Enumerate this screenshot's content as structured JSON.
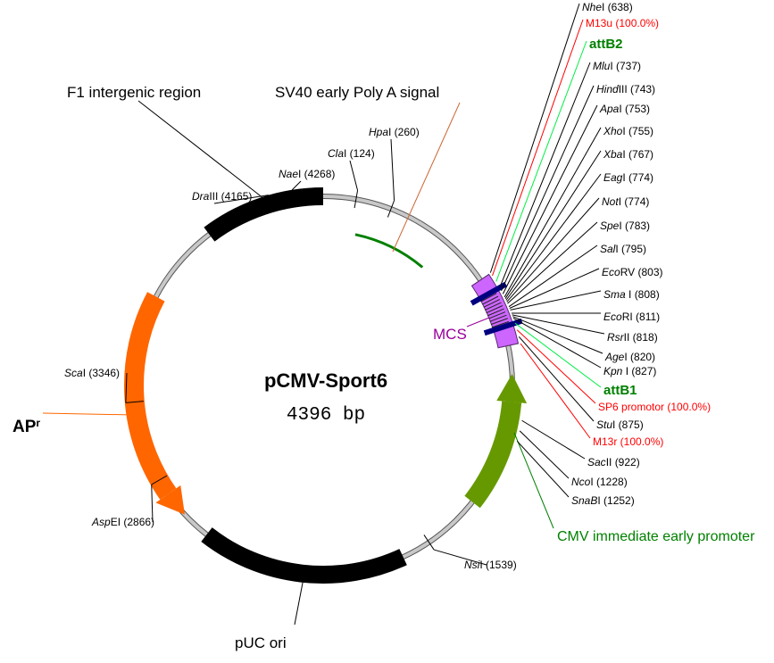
{
  "plasmid": {
    "name": "pCMV-Sport6",
    "size_label": "4396 bp",
    "length_bp": 4396
  },
  "colors": {
    "backbone": "#c8c8c8",
    "f1": "#000000",
    "puc": "#000000",
    "ampr": "#ff6600",
    "cmv": "#669900",
    "mcs": "#cc66ff",
    "polyA": "#008000",
    "primer": "#ff0000",
    "att": "#00cc33",
    "mcs_label": "#990099",
    "cmv_label": "#008000"
  },
  "features": {
    "f1": "F1 intergenic region",
    "sv40": "SV40 early Poly A signal",
    "ampr_main": "AP",
    "ampr_sup": "r",
    "puc": "pUC ori",
    "mcs": "MCS",
    "cmv": "CMV immediate early promoter"
  },
  "left_sites": [
    {
      "italic": "Dra",
      "rest": "III (4165)"
    },
    {
      "italic": "Nae",
      "rest": "I (4268)"
    },
    {
      "italic": "Cla",
      "rest": "I (124)"
    },
    {
      "italic": "Hpa",
      "rest": "I (260)"
    },
    {
      "italic": "Sca",
      "rest": "I (3346)"
    },
    {
      "italic": "Asp",
      "rest": "EI (2866)"
    },
    {
      "italic": "Nsi",
      "rest": "I (1539)"
    }
  ],
  "right_labels": [
    {
      "kind": "site",
      "italic": "Nhe",
      "rest": "I (638)"
    },
    {
      "kind": "primer",
      "text": "M13u (100.0%)"
    },
    {
      "kind": "att",
      "text": "attB2"
    },
    {
      "kind": "site",
      "italic": "Mlu",
      "rest": "I (737)"
    },
    {
      "kind": "site",
      "italic": "Hind",
      "rest": "III (743)"
    },
    {
      "kind": "site",
      "italic": "Apa",
      "rest": "I (753)"
    },
    {
      "kind": "site",
      "italic": "Xho",
      "rest": "I (755)"
    },
    {
      "kind": "site",
      "italic": "Xba",
      "rest": "I (767)"
    },
    {
      "kind": "site",
      "italic": "Eag",
      "rest": "I (774)"
    },
    {
      "kind": "site",
      "italic": "Not",
      "rest": "I (774)"
    },
    {
      "kind": "site",
      "italic": "Spe",
      "rest": "I (783)"
    },
    {
      "kind": "site",
      "italic": "Sal",
      "rest": "I (795)"
    },
    {
      "kind": "site",
      "italic": "Eco",
      "rest": "RV (803)"
    },
    {
      "kind": "site",
      "italic": "Sma",
      "rest": " I (808)"
    },
    {
      "kind": "site",
      "italic": "Eco",
      "rest": "RI (811)"
    },
    {
      "kind": "site",
      "italic": "Rsr",
      "rest": "II (818)"
    },
    {
      "kind": "site",
      "italic": "Age",
      "rest": "I (820)"
    },
    {
      "kind": "site",
      "italic": "Kpn",
      "rest": " I (827)"
    },
    {
      "kind": "att",
      "text": "attB1"
    },
    {
      "kind": "primer",
      "text": "SP6 promotor (100.0%)"
    },
    {
      "kind": "site",
      "italic": "Stu",
      "rest": "I (875)"
    },
    {
      "kind": "primer",
      "text": "M13r (100.0%)"
    },
    {
      "kind": "site",
      "italic": "Sac",
      "rest": "II (922)"
    },
    {
      "kind": "site",
      "italic": "Nco",
      "rest": "I (1228)"
    },
    {
      "kind": "site",
      "italic": "SnaB",
      "rest": "I (1252)"
    }
  ]
}
